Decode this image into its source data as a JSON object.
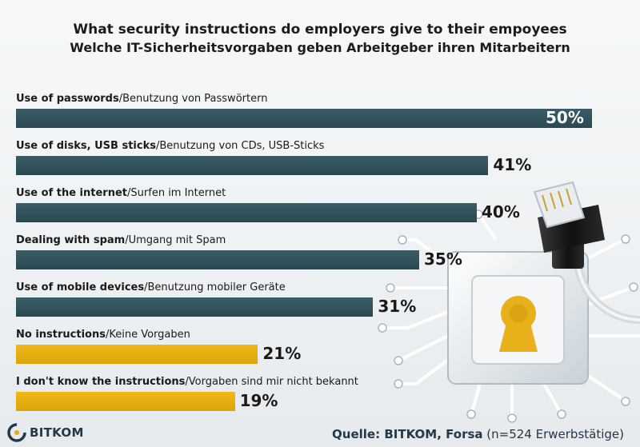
{
  "chart_data": {
    "type": "bar",
    "orientation": "horizontal",
    "title": "What security instructions do employers give to their empoyees",
    "subtitle": "Welche IT-Sicherheitsvorgaben geben Arbeitgeber ihren Mitarbeitern",
    "xlim": [
      0,
      50
    ],
    "grid": false,
    "categories": [
      {
        "en": "Use of passwords",
        "de": "Benutzung von Passwörtern"
      },
      {
        "en": "Use of disks, USB sticks",
        "de": "Benutzung von CDs, USB-Sticks"
      },
      {
        "en": "Use of the internet",
        "de": "Surfen im Internet"
      },
      {
        "en": "Dealing with spam",
        "de": "Umgang mit Spam"
      },
      {
        "en": "Use of mobile devices",
        "de": "Benutzung mobiler Geräte"
      },
      {
        "en": "No instructions",
        "de": "Keine Vorgaben"
      },
      {
        "en": "I don't know the instructions",
        "de": "Vorgaben sind mir nicht bekannt"
      }
    ],
    "values": [
      50,
      41,
      40,
      35,
      31,
      21,
      19
    ],
    "value_labels": [
      "50%",
      "41%",
      "40%",
      "35%",
      "31%",
      "21%",
      "19%"
    ],
    "bar_colors": [
      "#2e4d57",
      "#2e4d57",
      "#2e4d57",
      "#2e4d57",
      "#2e4d57",
      "#e5ae0e",
      "#e5ae0e"
    ]
  },
  "branding": {
    "logo_text": "BITKOM",
    "logo_color": "#23384a"
  },
  "source": {
    "label": "Quelle: BITKOM, Forsa",
    "note": "(n=524 Erwerbstätige)"
  }
}
